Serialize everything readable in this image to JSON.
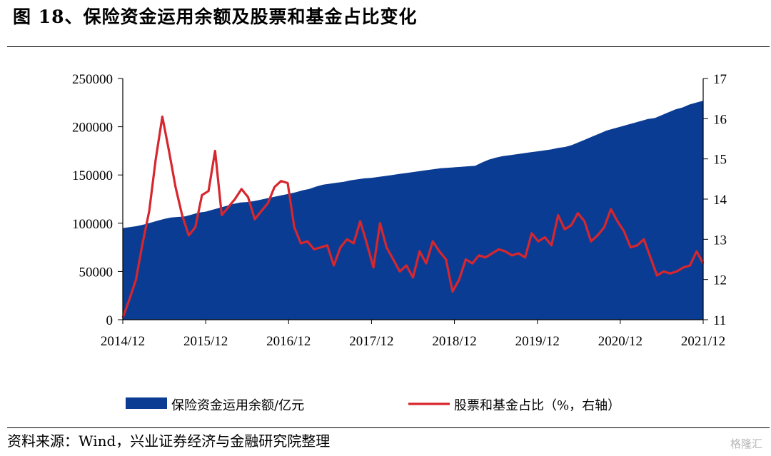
{
  "title": "图 18、保险资金运用余额及股票和基金占比变化",
  "source": "资料来源：Wind，兴业证券经济与金融研究院整理",
  "watermark": "格隆汇",
  "chart_data": {
    "type": "area+line",
    "x_tick_labels": [
      "2014/12",
      "2015/12",
      "2016/12",
      "2017/12",
      "2018/12",
      "2019/12",
      "2020/12",
      "2021/12"
    ],
    "y_left_ticks": [
      "0",
      "50000",
      "100000",
      "150000",
      "200000",
      "250000"
    ],
    "y_right_ticks": [
      "11",
      "12",
      "13",
      "14",
      "15",
      "16",
      "17"
    ],
    "y_left_range": [
      0,
      250000
    ],
    "y_right_range": [
      11,
      17
    ],
    "grid": false,
    "legend_position": "bottom",
    "colors": {
      "area": "#0b3c93",
      "line": "#d7262d"
    },
    "series": [
      {
        "name": "保险资金运用余额/亿元",
        "type": "area",
        "axis": "left",
        "values": [
          95000,
          96000,
          97000,
          98500,
          100500,
          102500,
          104500,
          106000,
          106500,
          107000,
          109000,
          111000,
          112000,
          114000,
          116000,
          118000,
          120000,
          121500,
          122000,
          123000,
          124500,
          126000,
          127500,
          129000,
          130500,
          132000,
          134000,
          135500,
          138000,
          140000,
          141000,
          142000,
          143000,
          144500,
          145500,
          146500,
          147000,
          148000,
          149000,
          150000,
          151000,
          152000,
          153000,
          154000,
          155000,
          156000,
          157000,
          157500,
          158000,
          158500,
          159000,
          159500,
          163000,
          166000,
          168000,
          169500,
          170500,
          171500,
          172500,
          173500,
          174500,
          175500,
          176500,
          178000,
          179000,
          181000,
          184000,
          187000,
          190000,
          193000,
          196000,
          198000,
          200000,
          202000,
          204000,
          206000,
          208000,
          209000,
          212000,
          215000,
          218000,
          220000,
          223000,
          225000,
          227000,
          229000,
          222000,
          221000,
          222500,
          224000,
          225500,
          227000,
          229000,
          231000,
          233500,
          234000
        ]
      },
      {
        "name": "股票和基金占比（%，右轴）",
        "type": "line",
        "axis": "right",
        "values": [
          11.05,
          11.5,
          12.0,
          12.9,
          13.7,
          15.0,
          16.05,
          15.2,
          14.3,
          13.6,
          13.1,
          13.3,
          14.1,
          14.2,
          15.2,
          13.6,
          13.8,
          14.0,
          14.25,
          14.05,
          13.5,
          13.7,
          13.9,
          14.3,
          14.45,
          14.4,
          13.3,
          12.9,
          12.95,
          12.75,
          12.8,
          12.85,
          12.35,
          12.8,
          13.0,
          12.9,
          13.45,
          12.9,
          12.3,
          13.4,
          12.8,
          12.5,
          12.2,
          12.35,
          12.05,
          12.7,
          12.4,
          12.95,
          12.7,
          12.5,
          11.7,
          12.0,
          12.5,
          12.4,
          12.6,
          12.55,
          12.65,
          12.75,
          12.7,
          12.6,
          12.65,
          12.55,
          13.15,
          12.95,
          13.05,
          12.85,
          13.6,
          13.25,
          13.35,
          13.65,
          13.45,
          12.95,
          13.1,
          13.3,
          13.75,
          13.45,
          13.2,
          12.8,
          12.85,
          13.0,
          12.55,
          12.1,
          12.2,
          12.15,
          12.2,
          12.3,
          12.35,
          12.7,
          12.4
        ]
      }
    ]
  }
}
